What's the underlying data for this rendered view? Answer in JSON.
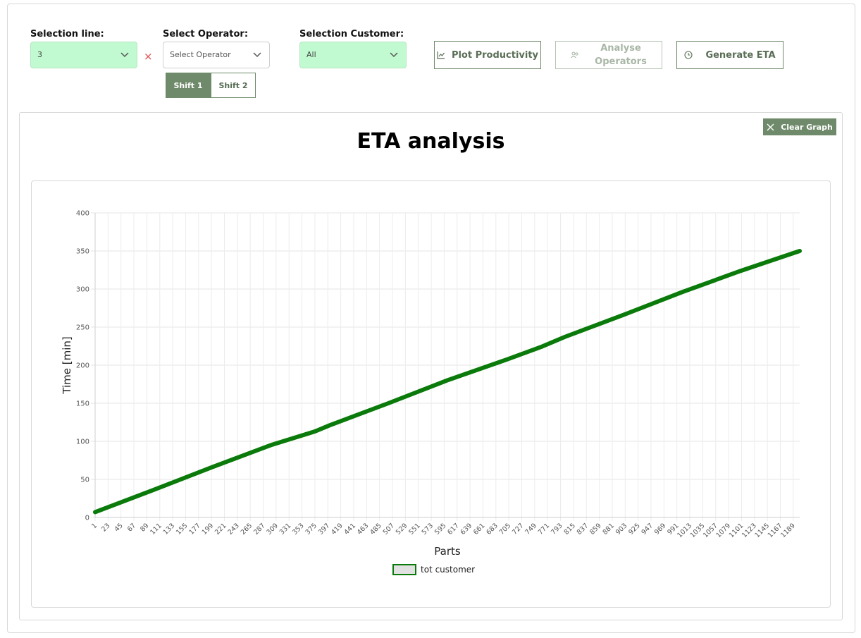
{
  "controls": {
    "line_label": "Selection line:",
    "line_value": "3",
    "operator_label": "Select Operator:",
    "operator_placeholder": "Select Operator",
    "customer_label": "Selection Customer:",
    "customer_value": "All",
    "clear_symbol": "×",
    "shift1": "Shift 1",
    "shift2": "Shift 2",
    "plot_productivity": "Plot Productivity",
    "analyse_operators_l1": "Analyse",
    "analyse_operators_l2": "Operators",
    "generate_eta": "Generate ETA",
    "clear_graph": "Clear Graph"
  },
  "colors": {
    "accent": "#6f8a6a",
    "select_green": "#c1fad0",
    "series": "#0a7a0a",
    "clear_red": "#e24a4a"
  },
  "chart_data": {
    "type": "line",
    "title": "ETA analysis",
    "xlabel": "Parts",
    "ylabel": "Time [min]",
    "ylim": [
      0,
      400
    ],
    "y_ticks": [
      0,
      50,
      100,
      150,
      200,
      250,
      300,
      350,
      400
    ],
    "x_tick_labels": [
      "1",
      "23",
      "45",
      "67",
      "89",
      "111",
      "133",
      "155",
      "177",
      "199",
      "221",
      "243",
      "265",
      "287",
      "309",
      "331",
      "353",
      "375",
      "397",
      "419",
      "441",
      "463",
      "485",
      "507",
      "529",
      "551",
      "573",
      "595",
      "617",
      "639",
      "661",
      "683",
      "705",
      "727",
      "749",
      "771",
      "793",
      "815",
      "837",
      "859",
      "881",
      "903",
      "925",
      "947",
      "969",
      "991",
      "1013",
      "1035",
      "1057",
      "1079",
      "1101",
      "1123",
      "1145",
      "1167",
      "1189"
    ],
    "grid": true,
    "legend_position": "bottom",
    "series": [
      {
        "name": "tot customer",
        "x": [
          1,
          100,
          200,
          300,
          375,
          400,
          500,
          600,
          700,
          760,
          800,
          900,
          1000,
          1100,
          1200
        ],
        "y": [
          7,
          36,
          66,
          95,
          113,
          121,
          150,
          180,
          207,
          224,
          237,
          266,
          296,
          324,
          350
        ]
      }
    ]
  }
}
